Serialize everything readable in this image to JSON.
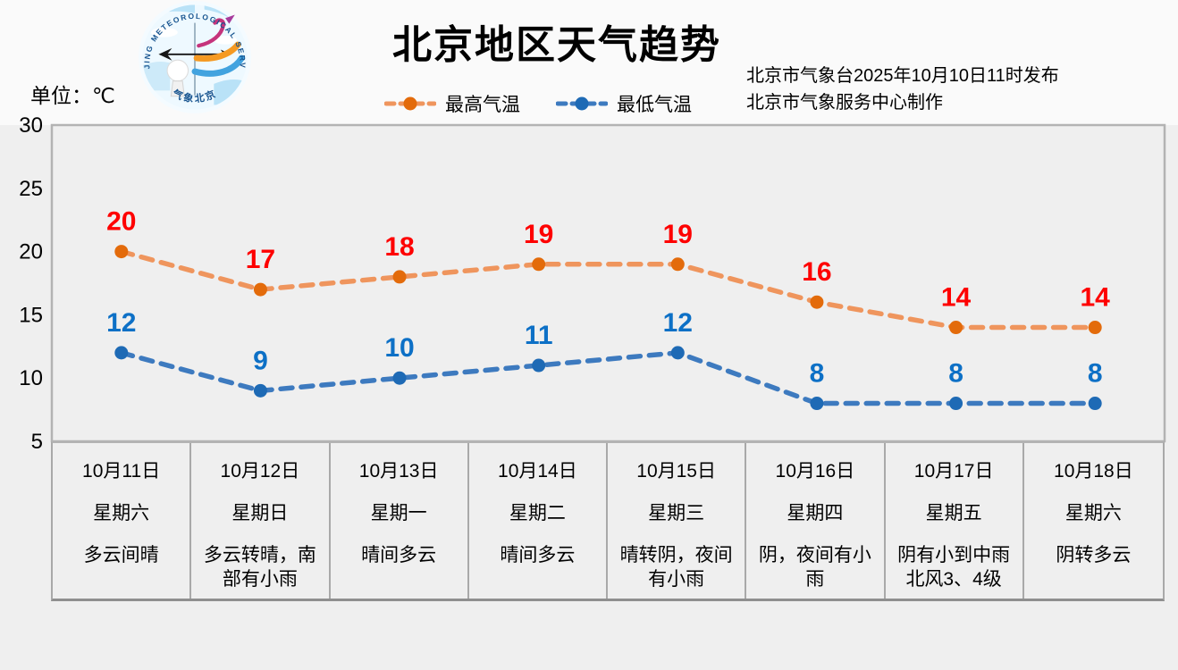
{
  "header": {
    "title": "北京地区天气趋势",
    "unit_label": "单位：℃",
    "issue_line1": "北京市气象台2025年10月10日11时发布",
    "issue_line2": "北京市气象服务中心制作",
    "logo_text_arc": "BEIJING METEOROLOGICAL SERVICE",
    "logo_text_bottom": "气象北京"
  },
  "chart_data": {
    "type": "line",
    "title": "北京地区天气趋势",
    "unit": "℃",
    "ylim": [
      5,
      30
    ],
    "yticks": [
      30,
      25,
      20,
      15,
      10,
      5
    ],
    "grid": false,
    "legend_position": "top",
    "x_categories": [
      "10月11日",
      "10月12日",
      "10月13日",
      "10月14日",
      "10月15日",
      "10月16日",
      "10月17日",
      "10月18日"
    ],
    "series": [
      {
        "name": "最高气温",
        "values": [
          20,
          17,
          18,
          19,
          19,
          16,
          14,
          14
        ],
        "marker_color": "#e36b0b",
        "line_color": "#ef955d",
        "label_color": "#fe0000"
      },
      {
        "name": "最低气温",
        "values": [
          12,
          9,
          10,
          11,
          12,
          8,
          8,
          8
        ],
        "marker_color": "#1e6ab5",
        "line_color": "#3d7abf",
        "label_color": "#0d70c6"
      }
    ]
  },
  "days": [
    {
      "date": "10月11日",
      "weekday": "星期六",
      "weather": "多云间晴"
    },
    {
      "date": "10月12日",
      "weekday": "星期日",
      "weather": "多云转晴，南部有小雨"
    },
    {
      "date": "10月13日",
      "weekday": "星期一",
      "weather": "晴间多云"
    },
    {
      "date": "10月14日",
      "weekday": "星期二",
      "weather": "晴间多云"
    },
    {
      "date": "10月15日",
      "weekday": "星期三",
      "weather": "晴转阴，夜间有小雨"
    },
    {
      "date": "10月16日",
      "weekday": "星期四",
      "weather": "阴，夜间有小雨"
    },
    {
      "date": "10月17日",
      "weekday": "星期五",
      "weather": "阴有小到中雨\n北风3、4级"
    },
    {
      "date": "10月18日",
      "weekday": "星期六",
      "weather": "阴转多云"
    }
  ]
}
